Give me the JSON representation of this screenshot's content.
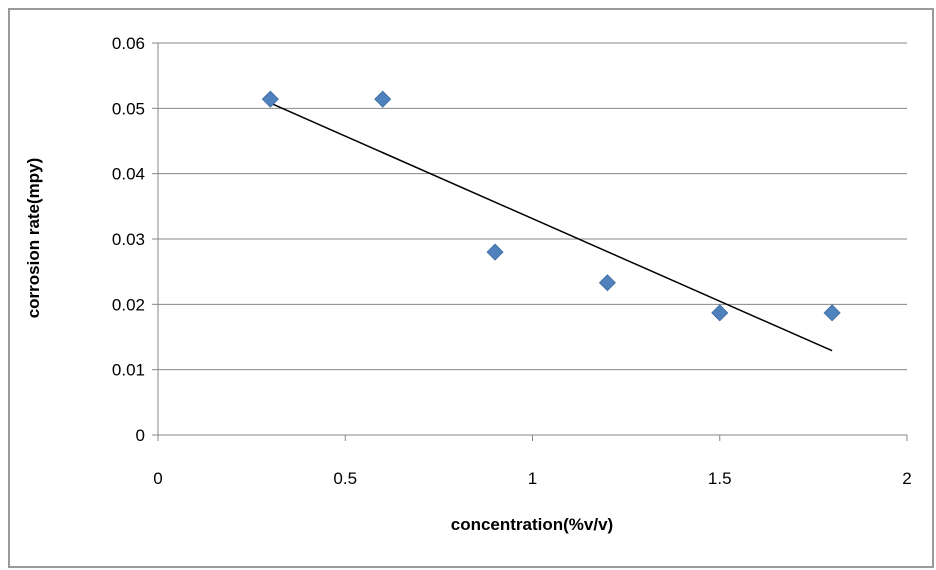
{
  "chart_data": {
    "type": "scatter",
    "title": "",
    "xlabel": "concentration(%v/v)",
    "ylabel": "corrosion rate(mpy)",
    "xlim": [
      0,
      2
    ],
    "ylim": [
      0,
      0.06
    ],
    "x_ticks": [
      "0",
      "0.5",
      "1",
      "1.5",
      "2"
    ],
    "y_ticks": [
      "0",
      "0.01",
      "0.02",
      "0.03",
      "0.04",
      "0.05",
      "0.06"
    ],
    "grid": "horizontal major gridlines",
    "legend": "none",
    "marker": "diamond",
    "series": [
      {
        "x": [
          0.3,
          0.6,
          0.9,
          1.2,
          1.5,
          1.8
        ],
        "y": [
          0.0514,
          0.0514,
          0.028,
          0.0233,
          0.0187,
          0.0187
        ],
        "color": "#4F81BD"
      }
    ],
    "trendline": {
      "type": "linear",
      "x": [
        0.3,
        1.8
      ],
      "y": [
        0.0508,
        0.0129
      ],
      "color": "#000000"
    }
  }
}
